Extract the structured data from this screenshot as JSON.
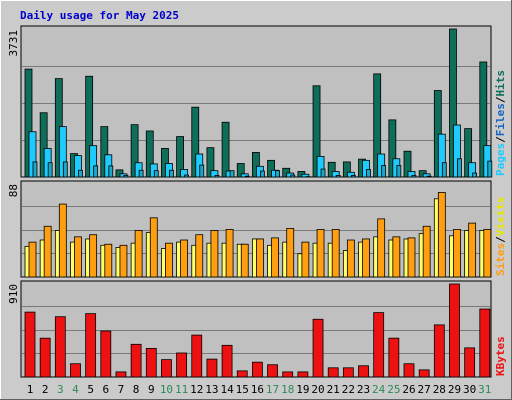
{
  "title": "Daily usage for May 2025",
  "colors": {
    "title": "#0000cc",
    "pages": "#0e6e5a",
    "files": "#1ecbff",
    "hits": "#0e6e5a",
    "sites_fill": "#ff9e0f",
    "visits_fill": "#ffff66",
    "kbytes": "#ee1111",
    "weekend_label": "#2e8b57",
    "weekday_label": "#000000",
    "plot_bg": "#c0c0c0",
    "outer_bg": "#cbcbcb"
  },
  "chart_data": [
    {
      "type": "bar",
      "panel": "hits_files_pages",
      "ymax_label": "3731",
      "ymax": 3731,
      "legend": [
        {
          "key": "pages",
          "label": "Pages",
          "color": "#1ecbff"
        },
        {
          "key": "sep1",
          "label": "/",
          "color": "#000000"
        },
        {
          "key": "files",
          "label": "Files",
          "color": "#1565c0"
        },
        {
          "key": "sep2",
          "label": "/",
          "color": "#000000"
        },
        {
          "key": "hits",
          "label": "Hits",
          "color": "#0e6e5a"
        }
      ],
      "categories": [
        "1",
        "2",
        "3",
        "4",
        "5",
        "6",
        "7",
        "8",
        "9",
        "10",
        "11",
        "12",
        "13",
        "14",
        "15",
        "16",
        "17",
        "18",
        "19",
        "20",
        "21",
        "22",
        "23",
        "24",
        "25",
        "26",
        "27",
        "28",
        "29",
        "30",
        "31"
      ],
      "series": [
        {
          "key": "hits",
          "values": [
            2720,
            1620,
            2480,
            590,
            2540,
            1270,
            180,
            1320,
            1160,
            720,
            1020,
            1760,
            740,
            1380,
            340,
            620,
            420,
            220,
            140,
            2300,
            370,
            380,
            450,
            2600,
            1440,
            650,
            160,
            2180,
            3731,
            1220,
            2900
          ]
        },
        {
          "key": "files",
          "values": [
            1140,
            720,
            1270,
            540,
            790,
            560,
            80,
            360,
            330,
            340,
            190,
            580,
            160,
            150,
            80,
            270,
            170,
            100,
            70,
            520,
            140,
            120,
            420,
            580,
            460,
            140,
            80,
            1080,
            1310,
            360,
            790
          ]
        },
        {
          "key": "pages",
          "values": [
            380,
            360,
            380,
            170,
            280,
            280,
            40,
            170,
            160,
            170,
            50,
            300,
            40,
            160,
            20,
            150,
            160,
            50,
            10,
            200,
            40,
            40,
            190,
            290,
            290,
            40,
            20,
            360,
            460,
            100,
            400
          ]
        }
      ]
    },
    {
      "type": "bar",
      "panel": "visits_sites",
      "ymax_label": "88",
      "ymax": 88,
      "legend": [
        {
          "key": "sites",
          "label": "Sites",
          "color": "#ff9e0f"
        },
        {
          "key": "sep",
          "label": "/",
          "color": "#000000"
        },
        {
          "key": "visits",
          "label": "Visits",
          "color": "#ffff66"
        }
      ],
      "categories": [
        "1",
        "2",
        "3",
        "4",
        "5",
        "6",
        "7",
        "8",
        "9",
        "10",
        "11",
        "12",
        "13",
        "14",
        "15",
        "16",
        "17",
        "18",
        "19",
        "20",
        "21",
        "22",
        "23",
        "24",
        "25",
        "26",
        "27",
        "28",
        "29",
        "30",
        "31"
      ],
      "series": [
        {
          "key": "visits",
          "values": [
            29,
            35,
            44,
            33,
            36,
            30,
            28,
            32,
            42,
            27,
            33,
            30,
            32,
            32,
            31,
            36,
            30,
            33,
            22,
            32,
            32,
            25,
            33,
            38,
            35,
            36,
            41,
            74,
            39,
            44,
            44
          ]
        },
        {
          "key": "sites",
          "values": [
            33,
            48,
            69,
            38,
            40,
            31,
            30,
            44,
            56,
            32,
            35,
            40,
            44,
            45,
            31,
            36,
            37,
            46,
            33,
            45,
            45,
            35,
            36,
            55,
            38,
            37,
            48,
            80,
            45,
            51,
            45
          ]
        }
      ]
    },
    {
      "type": "bar",
      "panel": "kbytes",
      "ymax_label": "910",
      "ymax": 910,
      "legend": [
        {
          "key": "kbytes",
          "label": "KBytes",
          "color": "#ee1111"
        }
      ],
      "categories": [
        "1",
        "2",
        "3",
        "4",
        "5",
        "6",
        "7",
        "8",
        "9",
        "10",
        "11",
        "12",
        "13",
        "14",
        "15",
        "16",
        "17",
        "18",
        "19",
        "20",
        "21",
        "22",
        "23",
        "24",
        "25",
        "26",
        "27",
        "28",
        "29",
        "30",
        "31"
      ],
      "series": [
        {
          "key": "kbytes",
          "values": [
            635,
            380,
            590,
            130,
            620,
            450,
            50,
            320,
            280,
            170,
            235,
            410,
            175,
            310,
            60,
            145,
            120,
            50,
            50,
            565,
            90,
            90,
            110,
            630,
            380,
            130,
            70,
            510,
            910,
            285,
            665
          ]
        }
      ]
    }
  ],
  "x_axis": {
    "labels": [
      "1",
      "2",
      "3",
      "4",
      "5",
      "6",
      "7",
      "8",
      "9",
      "10",
      "11",
      "12",
      "13",
      "14",
      "15",
      "16",
      "17",
      "18",
      "19",
      "20",
      "21",
      "22",
      "23",
      "24",
      "25",
      "26",
      "27",
      "28",
      "29",
      "30",
      "31"
    ],
    "weekend_days": [
      "3",
      "4",
      "10",
      "11",
      "17",
      "18",
      "24",
      "25",
      "31"
    ]
  }
}
